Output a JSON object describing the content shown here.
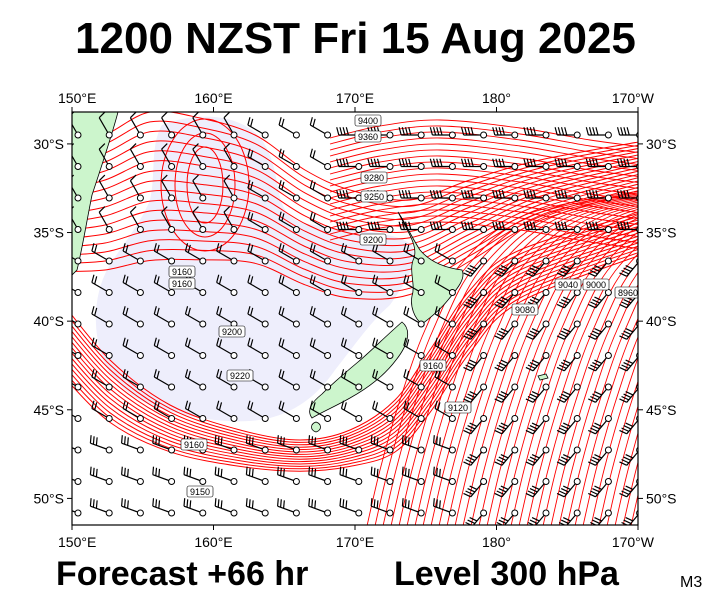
{
  "header": {
    "title": "1200 NZST Fri 15 Aug 2025"
  },
  "footer": {
    "forecast": "Forecast +66 hr",
    "level": "Level 300 hPa",
    "model_code": "M3"
  },
  "map": {
    "lon_range": [
      150,
      190
    ],
    "lat_range": [
      -51.5,
      -28.2
    ],
    "lon_ticks": [
      {
        "lon": 150,
        "label": "150°E"
      },
      {
        "lon": 160,
        "label": "160°E"
      },
      {
        "lon": 170,
        "label": "170°E"
      },
      {
        "lon": 180,
        "label": "180°"
      },
      {
        "lon": 190,
        "label": "170°W"
      }
    ],
    "lat_ticks": [
      {
        "lat": -30,
        "label": "30°S"
      },
      {
        "lat": -35,
        "label": "35°S"
      },
      {
        "lat": -40,
        "label": "40°S"
      },
      {
        "lat": -45,
        "label": "45°S"
      },
      {
        "lat": -50,
        "label": "50°S"
      }
    ],
    "contour_labels": [
      "9400",
      "9360",
      "9280",
      "9250",
      "9200",
      "9160",
      "9160",
      "9200",
      "9220",
      "9160",
      "9150",
      "9160",
      "9120",
      "9080",
      "9040",
      "9000",
      "8960"
    ],
    "colors": {
      "contour": "#ff0000",
      "land": "#ccf5cc",
      "low_fill": "#eeeefc",
      "frame": "#000000"
    }
  }
}
